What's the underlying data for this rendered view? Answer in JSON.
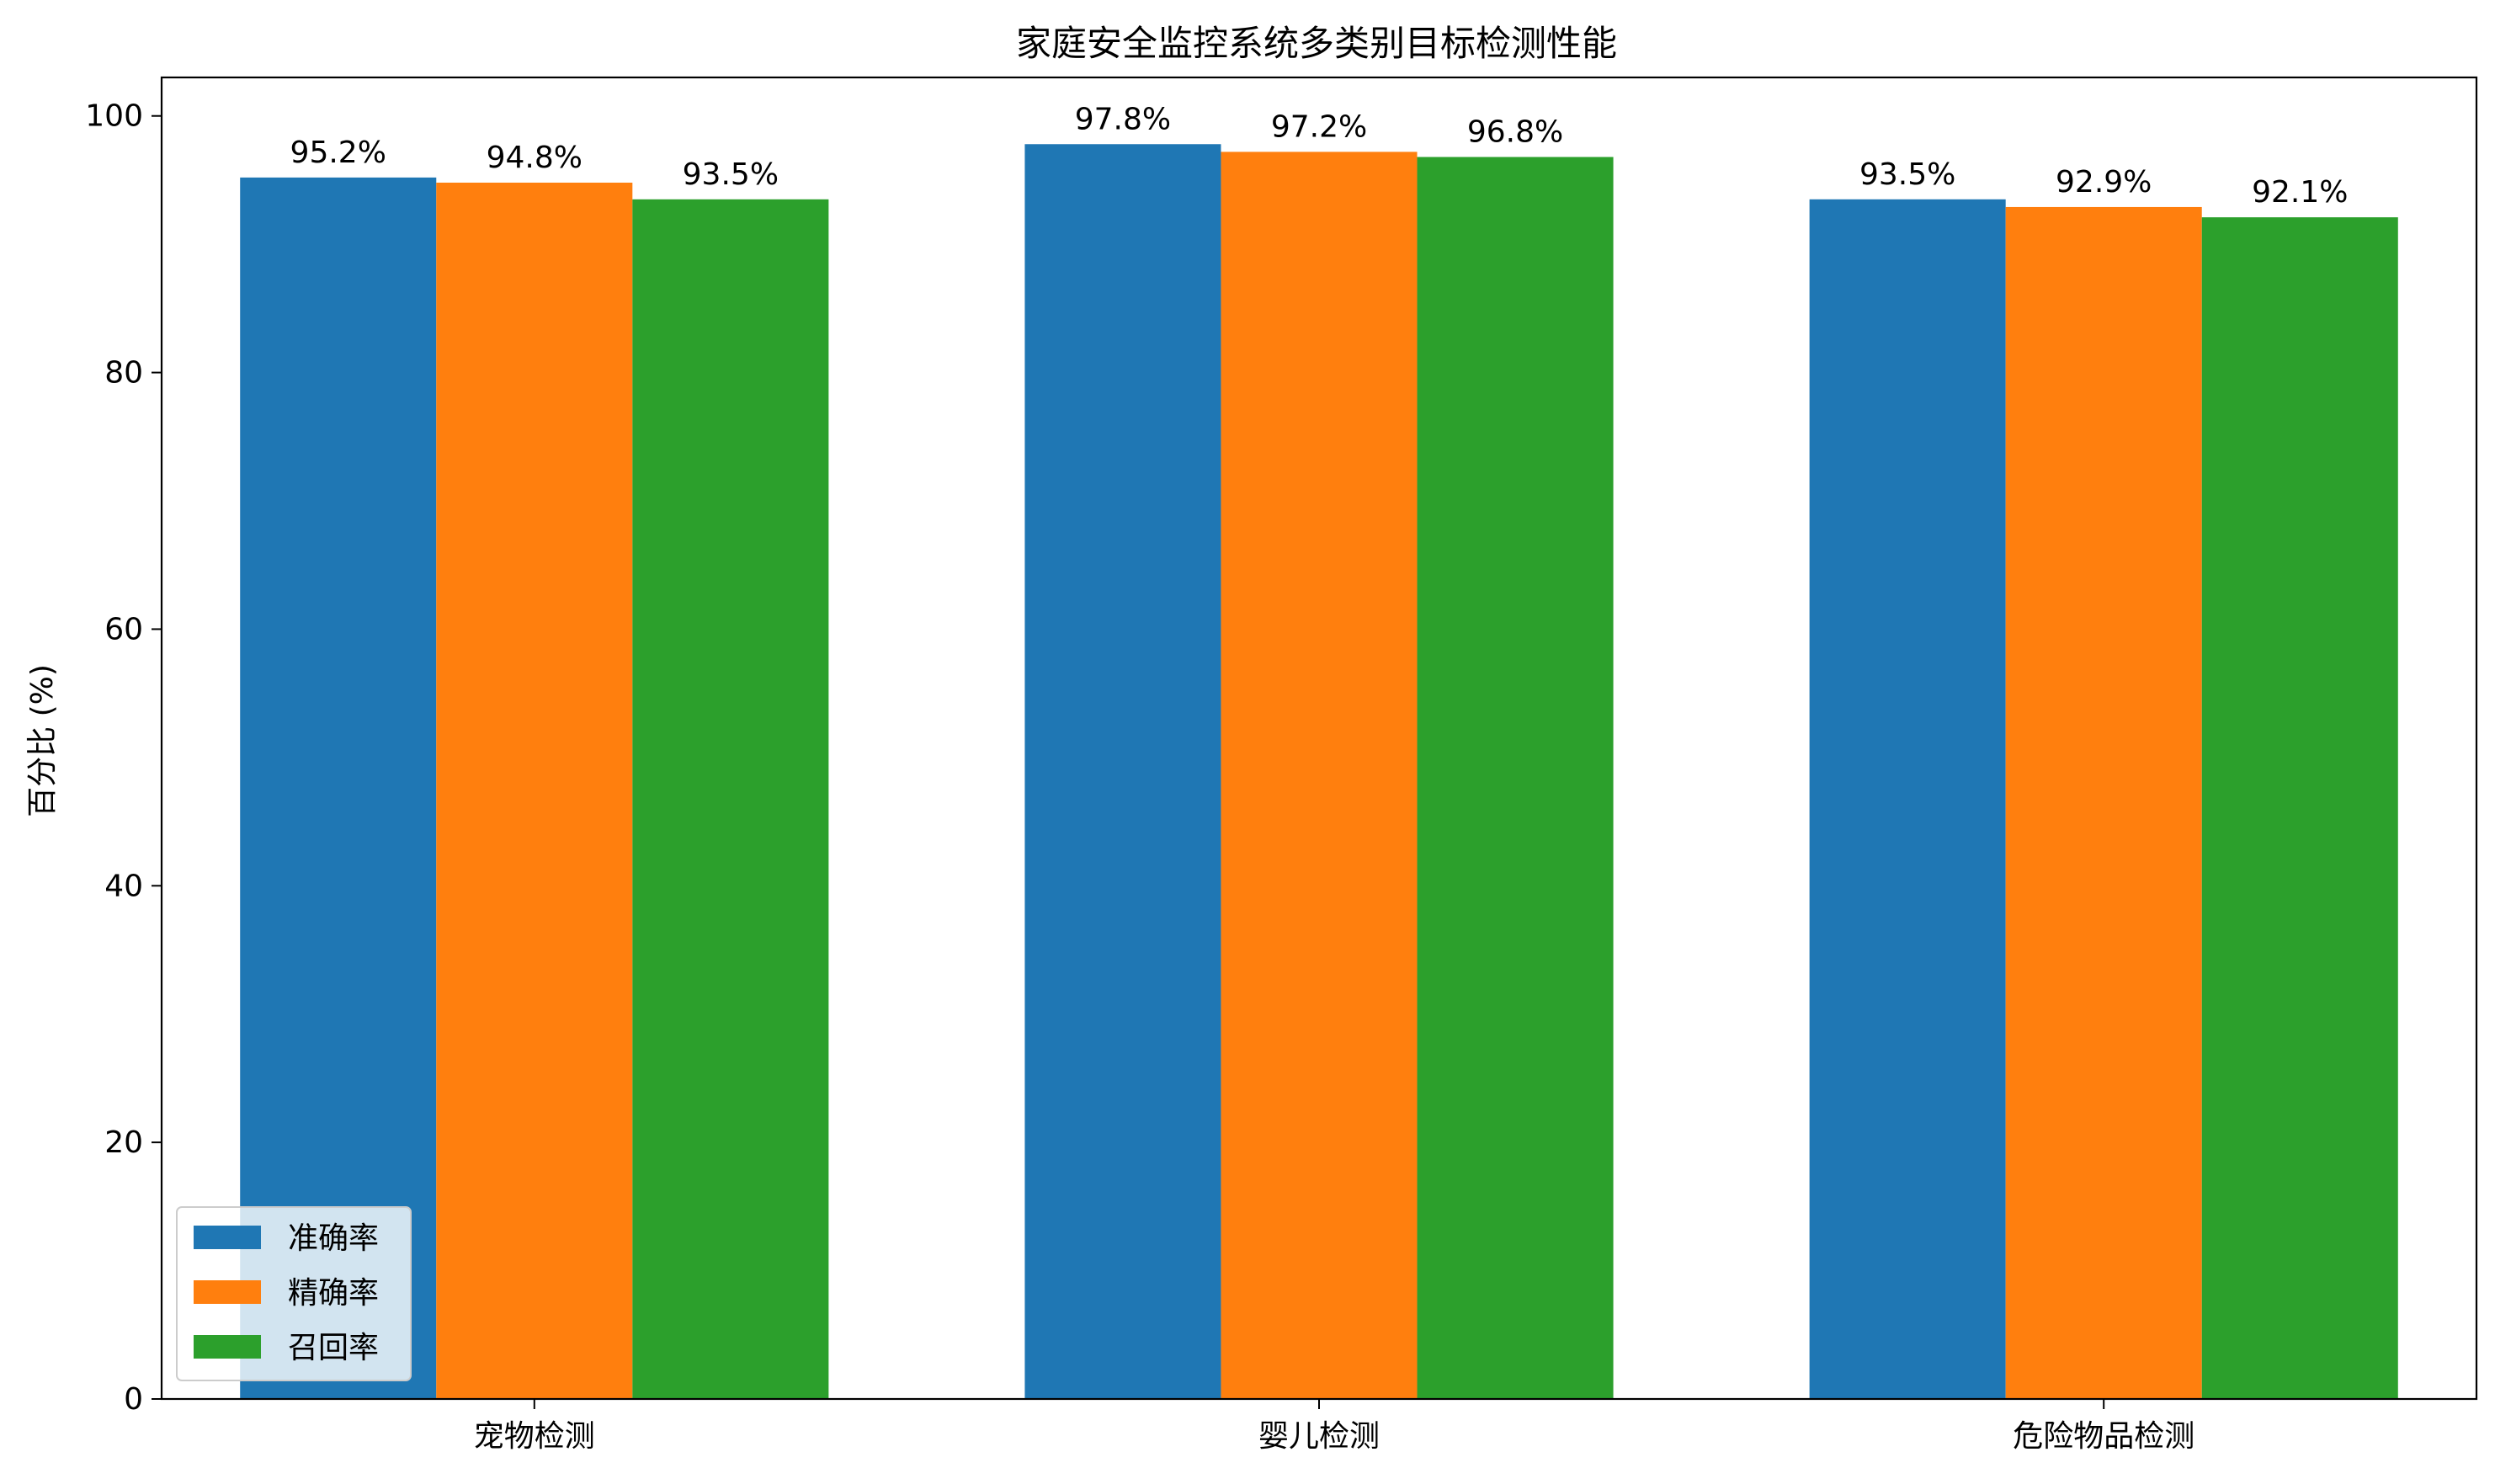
{
  "chart_data": {
    "type": "bar",
    "title": "家庭安全监控系统多类别目标检测性能",
    "xlabel": "",
    "ylabel": "百分比 (%)",
    "ylim": [
      0,
      103
    ],
    "yticks": [
      0,
      20,
      40,
      60,
      80,
      100
    ],
    "categories": [
      "宠物检测",
      "婴儿检测",
      "危险物品检测"
    ],
    "series": [
      {
        "name": "准确率",
        "color": "#1f77b4",
        "values": [
          95.2,
          97.8,
          93.5
        ]
      },
      {
        "name": "精确率",
        "color": "#ff7f0e",
        "values": [
          94.8,
          97.2,
          92.9
        ]
      },
      {
        "name": "召回率",
        "color": "#2ca02c",
        "values": [
          93.5,
          96.8,
          92.1
        ]
      }
    ],
    "data_label_suffix": "%",
    "legend_position": "lower-left",
    "grid": false
  }
}
